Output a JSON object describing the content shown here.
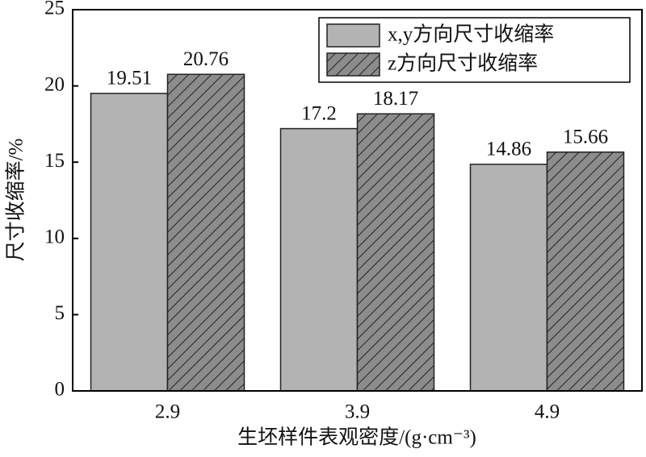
{
  "chart_data": {
    "type": "bar",
    "x_label": "生坯样件表观密度/(g·cm⁻³)",
    "y_label": "尺寸收缩率/%",
    "categories": [
      "2.9",
      "3.9",
      "4.9"
    ],
    "series": [
      {
        "name": "x,y方向尺寸收缩率",
        "color": "#b3b3b3",
        "hatch": false,
        "values": [
          19.51,
          17.2,
          14.86
        ]
      },
      {
        "name": "z方向尺寸收缩率",
        "color": "#8c8c8c",
        "hatch": true,
        "values": [
          20.76,
          18.17,
          15.66
        ]
      }
    ],
    "ylim": [
      0,
      25
    ],
    "yticks": [
      0,
      5,
      10,
      15,
      20,
      25
    ],
    "grid": false,
    "legend": "upper right"
  }
}
